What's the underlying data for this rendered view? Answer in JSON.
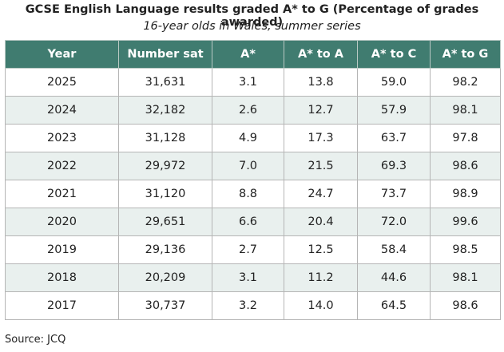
{
  "title": "GCSE English Language results graded A* to G (Percentage of grades awarded)",
  "subtitle": "16-year olds in Wales, summer series",
  "table": {
    "header": [
      "Year",
      "Number sat",
      "A*",
      "A* to A",
      "A* to C",
      "A* to G"
    ],
    "rows": [
      [
        "2025",
        "31,631",
        "3.1",
        "13.8",
        "59.0",
        "98.2"
      ],
      [
        "2024",
        "32,182",
        "2.6",
        "12.7",
        "57.9",
        "98.1"
      ],
      [
        "2023",
        "31,128",
        "4.9",
        "17.3",
        "63.7",
        "97.8"
      ],
      [
        "2022",
        "29,972",
        "7.0",
        "21.5",
        "69.3",
        "98.6"
      ],
      [
        "2021",
        "31,120",
        "8.8",
        "24.7",
        "73.7",
        "98.9"
      ],
      [
        "2020",
        "29,651",
        "6.6",
        "20.4",
        "72.0",
        "99.6"
      ],
      [
        "2019",
        "29,136",
        "2.7",
        "12.5",
        "58.4",
        "98.5"
      ],
      [
        "2018",
        "20,209",
        "3.1",
        "11.2",
        "44.6",
        "98.1"
      ],
      [
        "2017",
        "30,737",
        "3.2",
        "14.0",
        "64.5",
        "98.6"
      ]
    ]
  },
  "source": "Source: JCQ"
}
